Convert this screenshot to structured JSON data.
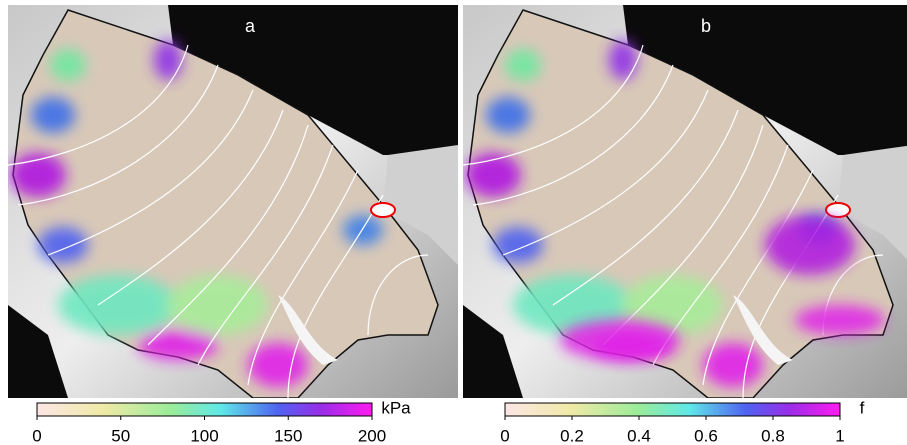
{
  "panels": [
    {
      "label": "a",
      "colorbar": {
        "unit": "kPa",
        "lim": [
          0,
          200
        ],
        "ticks": [
          0,
          50,
          100,
          150,
          200
        ]
      }
    },
    {
      "label": "b",
      "colorbar": {
        "unit": "f",
        "lim": [
          0,
          1
        ],
        "ticks": [
          0,
          0.2,
          0.4,
          0.6,
          0.8,
          1
        ]
      }
    }
  ]
}
